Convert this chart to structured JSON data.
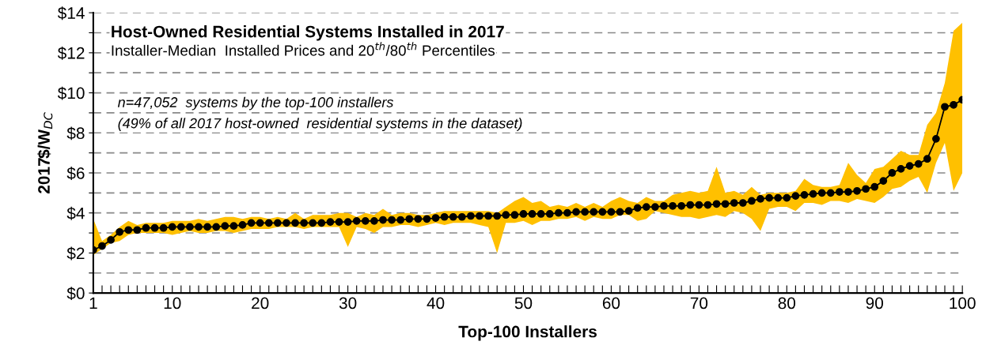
{
  "chart_data": {
    "type": "line",
    "title": "Host-Owned Residential Systems Installed in 2017",
    "subtitle": "Installer-Median  Installed Prices and 20$^{th}$/80$^{th}$ Percentiles",
    "xlabel": "Top-100 Installers",
    "ylabel": "2017$/W$_{DC}$",
    "annotations": [
      "n=47,052  systems by the top-100 installers",
      "(49% of all 2017 host-owned  residential systems in the dataset)"
    ],
    "x": [
      1,
      2,
      3,
      4,
      5,
      6,
      7,
      8,
      9,
      10,
      11,
      12,
      13,
      14,
      15,
      16,
      17,
      18,
      19,
      20,
      21,
      22,
      23,
      24,
      25,
      26,
      27,
      28,
      29,
      30,
      31,
      32,
      33,
      34,
      35,
      36,
      37,
      38,
      39,
      40,
      41,
      42,
      43,
      44,
      45,
      46,
      47,
      48,
      49,
      50,
      51,
      52,
      53,
      54,
      55,
      56,
      57,
      58,
      59,
      60,
      61,
      62,
      63,
      64,
      65,
      66,
      67,
      68,
      69,
      70,
      71,
      72,
      73,
      74,
      75,
      76,
      77,
      78,
      79,
      80,
      81,
      82,
      83,
      84,
      85,
      86,
      87,
      88,
      89,
      90,
      91,
      92,
      93,
      94,
      95,
      96,
      97,
      98,
      99,
      100
    ],
    "series": [
      {
        "color": "#000000",
        "marker": "circle",
        "line_style": "solid",
        "lower": [
          1.9,
          2.2,
          2.5,
          2.6,
          2.9,
          3.0,
          3.0,
          3.0,
          3.0,
          2.9,
          3.0,
          3.1,
          3.0,
          3.0,
          3.1,
          3.1,
          3.0,
          3.1,
          3.2,
          3.2,
          3.2,
          3.3,
          3.3,
          3.3,
          3.2,
          3.3,
          3.3,
          3.3,
          3.3,
          2.3,
          3.3,
          3.2,
          3.0,
          3.3,
          3.3,
          3.4,
          3.4,
          3.3,
          3.4,
          3.5,
          3.4,
          3.5,
          3.5,
          3.5,
          3.4,
          3.3,
          2.0,
          3.5,
          3.5,
          3.6,
          3.4,
          3.6,
          3.6,
          3.7,
          3.7,
          3.8,
          3.6,
          3.8,
          3.7,
          3.7,
          3.9,
          3.9,
          3.6,
          3.7,
          4.1,
          4.0,
          3.9,
          3.8,
          3.8,
          3.7,
          3.8,
          3.9,
          3.8,
          4.1,
          4.0,
          3.7,
          3.1,
          4.2,
          4.3,
          4.3,
          4.1,
          4.5,
          4.5,
          4.4,
          4.6,
          4.6,
          4.5,
          4.7,
          4.6,
          4.5,
          4.8,
          5.2,
          5.3,
          5.6,
          5.8,
          5.0,
          6.5,
          7.5,
          5.1,
          6.0
        ],
        "upper": [
          3.7,
          2.6,
          2.9,
          3.3,
          3.6,
          3.4,
          3.5,
          3.5,
          3.5,
          3.6,
          3.6,
          3.6,
          3.7,
          3.6,
          3.7,
          3.8,
          3.8,
          3.7,
          3.8,
          3.8,
          3.7,
          3.8,
          3.7,
          4.0,
          3.7,
          3.9,
          3.9,
          3.9,
          4.0,
          4.0,
          3.8,
          4.0,
          3.9,
          4.2,
          3.9,
          4.0,
          4.0,
          3.9,
          3.9,
          4.0,
          4.1,
          4.1,
          4.1,
          4.1,
          4.1,
          4.1,
          4.0,
          4.3,
          4.6,
          4.8,
          4.5,
          4.6,
          4.3,
          4.4,
          4.3,
          4.5,
          4.3,
          4.5,
          4.3,
          4.6,
          4.8,
          4.6,
          4.5,
          4.8,
          4.6,
          4.6,
          4.9,
          5.0,
          5.1,
          5.0,
          5.1,
          6.3,
          5.0,
          5.1,
          4.9,
          5.3,
          4.9,
          5.0,
          5.0,
          5.0,
          5.1,
          5.7,
          5.4,
          5.3,
          5.3,
          5.4,
          6.5,
          5.9,
          5.5,
          6.2,
          6.3,
          6.7,
          7.1,
          6.9,
          6.9,
          8.4,
          9.0,
          10.5,
          13.1,
          13.5
        ],
        "values": [
          2.15,
          2.35,
          2.65,
          3.05,
          3.15,
          3.15,
          3.25,
          3.25,
          3.25,
          3.3,
          3.3,
          3.3,
          3.3,
          3.3,
          3.3,
          3.35,
          3.35,
          3.4,
          3.5,
          3.5,
          3.5,
          3.5,
          3.5,
          3.5,
          3.5,
          3.5,
          3.5,
          3.55,
          3.55,
          3.55,
          3.6,
          3.6,
          3.6,
          3.65,
          3.65,
          3.65,
          3.7,
          3.7,
          3.7,
          3.75,
          3.8,
          3.8,
          3.8,
          3.85,
          3.85,
          3.85,
          3.85,
          3.9,
          3.9,
          3.95,
          3.95,
          3.95,
          3.95,
          4.0,
          4.0,
          4.05,
          4.05,
          4.05,
          4.05,
          4.05,
          4.05,
          4.1,
          4.25,
          4.3,
          4.3,
          4.35,
          4.35,
          4.35,
          4.4,
          4.4,
          4.4,
          4.45,
          4.45,
          4.5,
          4.5,
          4.6,
          4.7,
          4.75,
          4.75,
          4.75,
          4.85,
          4.9,
          4.95,
          5.0,
          5.0,
          5.05,
          5.05,
          5.1,
          5.2,
          5.3,
          5.6,
          6.0,
          6.2,
          6.35,
          6.45,
          6.7,
          7.7,
          9.3,
          9.4,
          9.65
        ]
      }
    ],
    "xlim": [
      1,
      100
    ],
    "xticks": [
      1,
      {
        "value": 2,
        "label": null
      },
      {
        "value": 3,
        "label": null
      },
      {
        "value": 4,
        "label": null
      },
      {
        "value": 5,
        "label": null
      },
      {
        "value": 6,
        "label": null
      },
      {
        "value": 7,
        "label": null
      },
      {
        "value": 8,
        "label": null
      },
      {
        "value": 9,
        "label": null
      },
      10,
      {
        "value": 11,
        "label": null
      },
      {
        "value": 12,
        "label": null
      },
      {
        "value": 13,
        "label": null
      },
      {
        "value": 14,
        "label": null
      },
      {
        "value": 15,
        "label": null
      },
      {
        "value": 16,
        "label": null
      },
      {
        "value": 17,
        "label": null
      },
      {
        "value": 18,
        "label": null
      },
      {
        "value": 19,
        "label": null
      },
      20,
      {
        "value": 21,
        "label": null
      },
      {
        "value": 22,
        "label": null
      },
      {
        "value": 23,
        "label": null
      },
      {
        "value": 24,
        "label": null
      },
      {
        "value": 25,
        "label": null
      },
      {
        "value": 26,
        "label": null
      },
      {
        "value": 27,
        "label": null
      },
      {
        "value": 28,
        "label": null
      },
      {
        "value": 29,
        "label": null
      },
      30,
      {
        "value": 31,
        "label": null
      },
      {
        "value": 32,
        "label": null
      },
      {
        "value": 33,
        "label": null
      },
      {
        "value": 34,
        "label": null
      },
      {
        "value": 35,
        "label": null
      },
      {
        "value": 36,
        "label": null
      },
      {
        "value": 37,
        "label": null
      },
      {
        "value": 38,
        "label": null
      },
      {
        "value": 39,
        "label": null
      },
      40,
      {
        "value": 41,
        "label": null
      },
      {
        "value": 42,
        "label": null
      },
      {
        "value": 43,
        "label": null
      },
      {
        "value": 44,
        "label": null
      },
      {
        "value": 45,
        "label": null
      },
      {
        "value": 46,
        "label": null
      },
      {
        "value": 47,
        "label": null
      },
      {
        "value": 48,
        "label": null
      },
      {
        "value": 49,
        "label": null
      },
      50,
      {
        "value": 51,
        "label": null
      },
      {
        "value": 52,
        "label": null
      },
      {
        "value": 53,
        "label": null
      },
      {
        "value": 54,
        "label": null
      },
      {
        "value": 55,
        "label": null
      },
      {
        "value": 56,
        "label": null
      },
      {
        "value": 57,
        "label": null
      },
      {
        "value": 58,
        "label": null
      },
      {
        "value": 59,
        "label": null
      },
      60,
      {
        "value": 61,
        "label": null
      },
      {
        "value": 62,
        "label": null
      },
      {
        "value": 63,
        "label": null
      },
      {
        "value": 64,
        "label": null
      },
      {
        "value": 65,
        "label": null
      },
      {
        "value": 66,
        "label": null
      },
      {
        "value": 67,
        "label": null
      },
      {
        "value": 68,
        "label": null
      },
      {
        "value": 69,
        "label": null
      },
      70,
      {
        "value": 71,
        "label": null
      },
      {
        "value": 72,
        "label": null
      },
      {
        "value": 73,
        "label": null
      },
      {
        "value": 74,
        "label": null
      },
      {
        "value": 75,
        "label": null
      },
      {
        "value": 76,
        "label": null
      },
      {
        "value": 77,
        "label": null
      },
      {
        "value": 78,
        "label": null
      },
      {
        "value": 79,
        "label": null
      },
      80,
      {
        "value": 81,
        "label": null
      },
      {
        "value": 82,
        "label": null
      },
      {
        "value": 83,
        "label": null
      },
      {
        "value": 84,
        "label": null
      },
      {
        "value": 85,
        "label": null
      },
      {
        "value": 86,
        "label": null
      },
      {
        "value": 87,
        "label": null
      },
      {
        "value": 88,
        "label": null
      },
      {
        "value": 89,
        "label": null
      },
      90,
      {
        "value": 91,
        "label": null
      },
      {
        "value": 92,
        "label": null
      },
      {
        "value": 93,
        "label": null
      },
      {
        "value": 94,
        "label": null
      },
      {
        "value": 95,
        "label": null
      },
      {
        "value": 96,
        "label": null
      },
      {
        "value": 97,
        "label": null
      },
      {
        "value": 98,
        "label": null
      },
      {
        "value": 99,
        "label": null
      },
      100
    ],
    "ylim": [
      0,
      14
    ],
    "yticks": [
      {
        "value": 0,
        "label": "$0"
      },
      {
        "value": 1,
        "label": null
      },
      {
        "value": 2,
        "label": "$2"
      },
      {
        "value": 3,
        "label": null
      },
      {
        "value": 4,
        "label": "$4"
      },
      {
        "value": 5,
        "label": null
      },
      {
        "value": 6,
        "label": "$6"
      },
      {
        "value": 7,
        "label": null
      },
      {
        "value": 8,
        "label": "$8"
      },
      {
        "value": 9,
        "label": null
      },
      {
        "value": 10,
        "label": "$10"
      },
      {
        "value": 11,
        "label": null
      },
      {
        "value": 12,
        "label": "$12"
      },
      {
        "value": 13,
        "label": null
      },
      {
        "value": 14,
        "label": "$14"
      }
    ],
    "grid": "y",
    "legend": false
  }
}
